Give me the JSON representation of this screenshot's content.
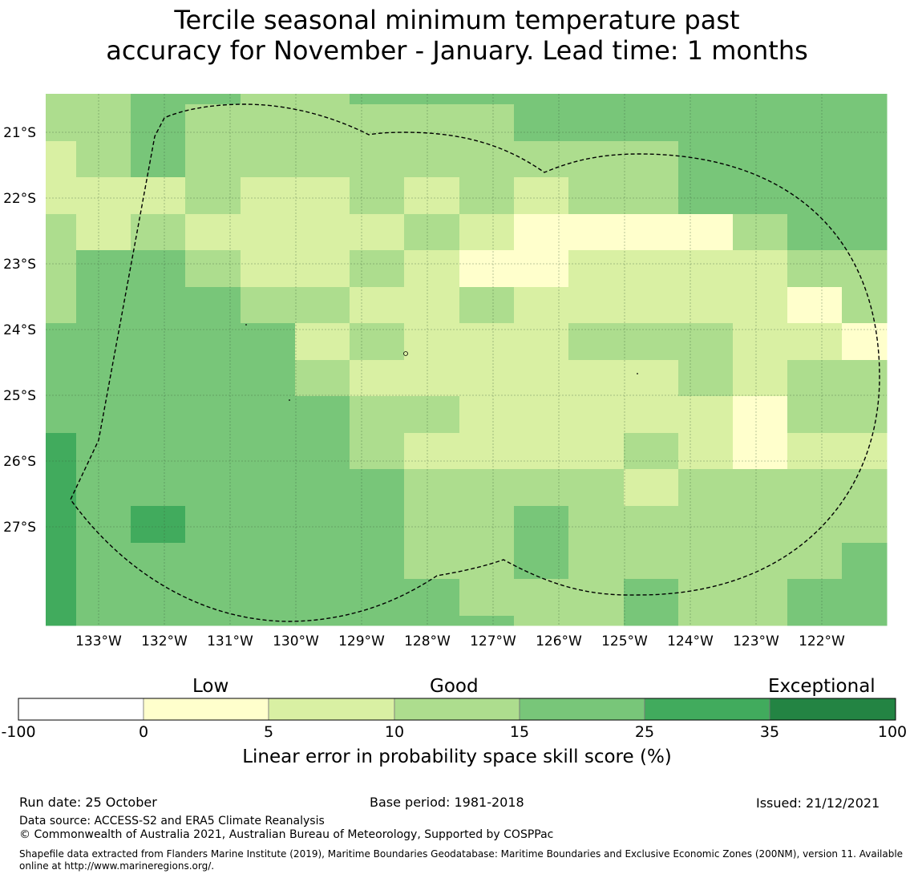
{
  "title_line1": "Tercile seasonal minimum temperature past",
  "title_line2": "accuracy for November - January. Lead time: 1 months",
  "map": {
    "lat_labels": [
      "21°S",
      "22°S",
      "23°S",
      "24°S",
      "25°S",
      "26°S",
      "27°S"
    ],
    "lat_values": [
      -21,
      -22,
      -23,
      -24,
      -25,
      -26,
      -27
    ],
    "lon_labels": [
      "133°W",
      "132°W",
      "131°W",
      "130°W",
      "129°W",
      "128°W",
      "127°W",
      "126°W",
      "125°W",
      "124°W",
      "123°W",
      "122°W"
    ],
    "lon_values": [
      -133,
      -132,
      -131,
      -130,
      -129,
      -128,
      -127,
      -126,
      -125,
      -124,
      -123,
      -122
    ],
    "cell_class_grid": [
      [
        2,
        2,
        3,
        3,
        2,
        2,
        3,
        3,
        3,
        3,
        3,
        3,
        3,
        3,
        3,
        3
      ],
      [
        2,
        2,
        3,
        2,
        2,
        2,
        2,
        2,
        2,
        3,
        3,
        3,
        3,
        3,
        3,
        3
      ],
      [
        1,
        2,
        3,
        2,
        2,
        2,
        2,
        2,
        2,
        2,
        2,
        2,
        3,
        3,
        3,
        3
      ],
      [
        1,
        1,
        1,
        2,
        1,
        1,
        2,
        1,
        2,
        1,
        2,
        2,
        3,
        3,
        3,
        3
      ],
      [
        2,
        1,
        2,
        1,
        1,
        1,
        1,
        2,
        1,
        0,
        0,
        0,
        0,
        2,
        3,
        3
      ],
      [
        2,
        3,
        3,
        2,
        1,
        1,
        2,
        1,
        0,
        0,
        1,
        1,
        1,
        1,
        2,
        2
      ],
      [
        2,
        3,
        3,
        3,
        2,
        2,
        1,
        1,
        2,
        1,
        1,
        1,
        1,
        1,
        0,
        2
      ],
      [
        3,
        3,
        3,
        3,
        3,
        1,
        2,
        1,
        1,
        1,
        2,
        2,
        2,
        1,
        1,
        0
      ],
      [
        3,
        3,
        3,
        3,
        3,
        2,
        1,
        1,
        1,
        1,
        1,
        1,
        2,
        1,
        2,
        2
      ],
      [
        3,
        3,
        3,
        3,
        3,
        3,
        2,
        2,
        1,
        1,
        1,
        1,
        1,
        0,
        2,
        2
      ],
      [
        4,
        3,
        3,
        3,
        3,
        3,
        2,
        1,
        1,
        1,
        1,
        2,
        1,
        0,
        1,
        1
      ],
      [
        4,
        3,
        3,
        3,
        3,
        3,
        3,
        2,
        2,
        2,
        2,
        1,
        2,
        2,
        2,
        2
      ],
      [
        4,
        3,
        4,
        3,
        3,
        3,
        3,
        2,
        2,
        3,
        2,
        2,
        2,
        2,
        2,
        2
      ],
      [
        4,
        3,
        3,
        3,
        3,
        3,
        3,
        2,
        2,
        3,
        2,
        2,
        2,
        2,
        2,
        3
      ],
      [
        4,
        3,
        3,
        3,
        3,
        3,
        3,
        3,
        2,
        2,
        2,
        3,
        2,
        2,
        3,
        3
      ],
      [
        4,
        3,
        3,
        3,
        3,
        3,
        3,
        3,
        3,
        2,
        2,
        3,
        2,
        2,
        3,
        3
      ]
    ]
  },
  "colorbar": {
    "category_low": "Low",
    "category_good": "Good",
    "category_exceptional": "Exceptional",
    "ticks": [
      "-100",
      "0",
      "5",
      "10",
      "15",
      "25",
      "35",
      "100"
    ],
    "colors": [
      "#ffffff",
      "#ffffcc",
      "#d9f0a3",
      "#addd8e",
      "#78c679",
      "#41ab5d",
      "#238443"
    ],
    "title": "Linear error in probability space skill score (%)"
  },
  "footer": {
    "run_date": "Run date: 25 October",
    "base_period": "Base period: 1981-2018",
    "issued": "Issued: 21/12/2021",
    "data_source": "Data source: ACCESS-S2 and ERA5 Climate Reanalysis",
    "copyright": "© Commonwealth of Australia 2021, Australian Bureau of Meteorology, Supported by COSPPac",
    "shapefile": "Shapefile data extracted from Flanders Marine Institute (2019), Maritime Boundaries Geodatabase: Maritime Boundaries and Exclusive Economic Zones (200NM), version 11. Available online at http://www.marineregions.org/."
  }
}
